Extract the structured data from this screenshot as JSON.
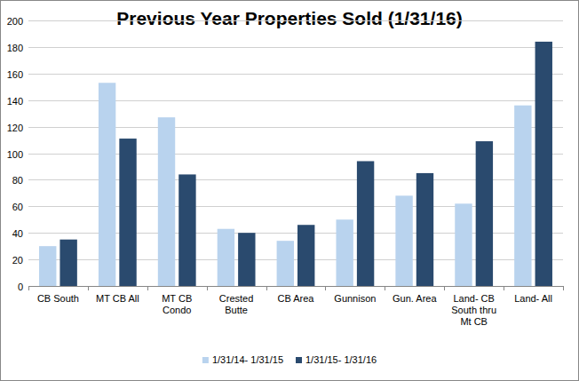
{
  "chart_data": {
    "type": "bar",
    "title": "Previous Year Properties Sold (1/31/16)",
    "categories": [
      "CB South",
      "MT CB All",
      "MT CB Condo",
      "Crested Butte",
      "CB Area",
      "Gunnison",
      "Gun. Area",
      "Land- CB South thru Mt CB",
      "Land- All"
    ],
    "series": [
      {
        "name": "1/31/14- 1/31/15",
        "color": "#b9d3ee",
        "values": [
          30,
          153,
          127,
          43,
          34,
          50,
          68,
          62,
          136
        ]
      },
      {
        "name": "1/31/15- 1/31/16",
        "color": "#2a4a6e",
        "values": [
          35,
          111,
          84,
          40,
          46,
          94,
          85,
          109,
          184
        ]
      }
    ],
    "ylim": [
      0,
      200
    ],
    "yticks": [
      0,
      20,
      40,
      60,
      80,
      100,
      120,
      140,
      160,
      180,
      200
    ],
    "grid": true,
    "legend": "bottom"
  }
}
